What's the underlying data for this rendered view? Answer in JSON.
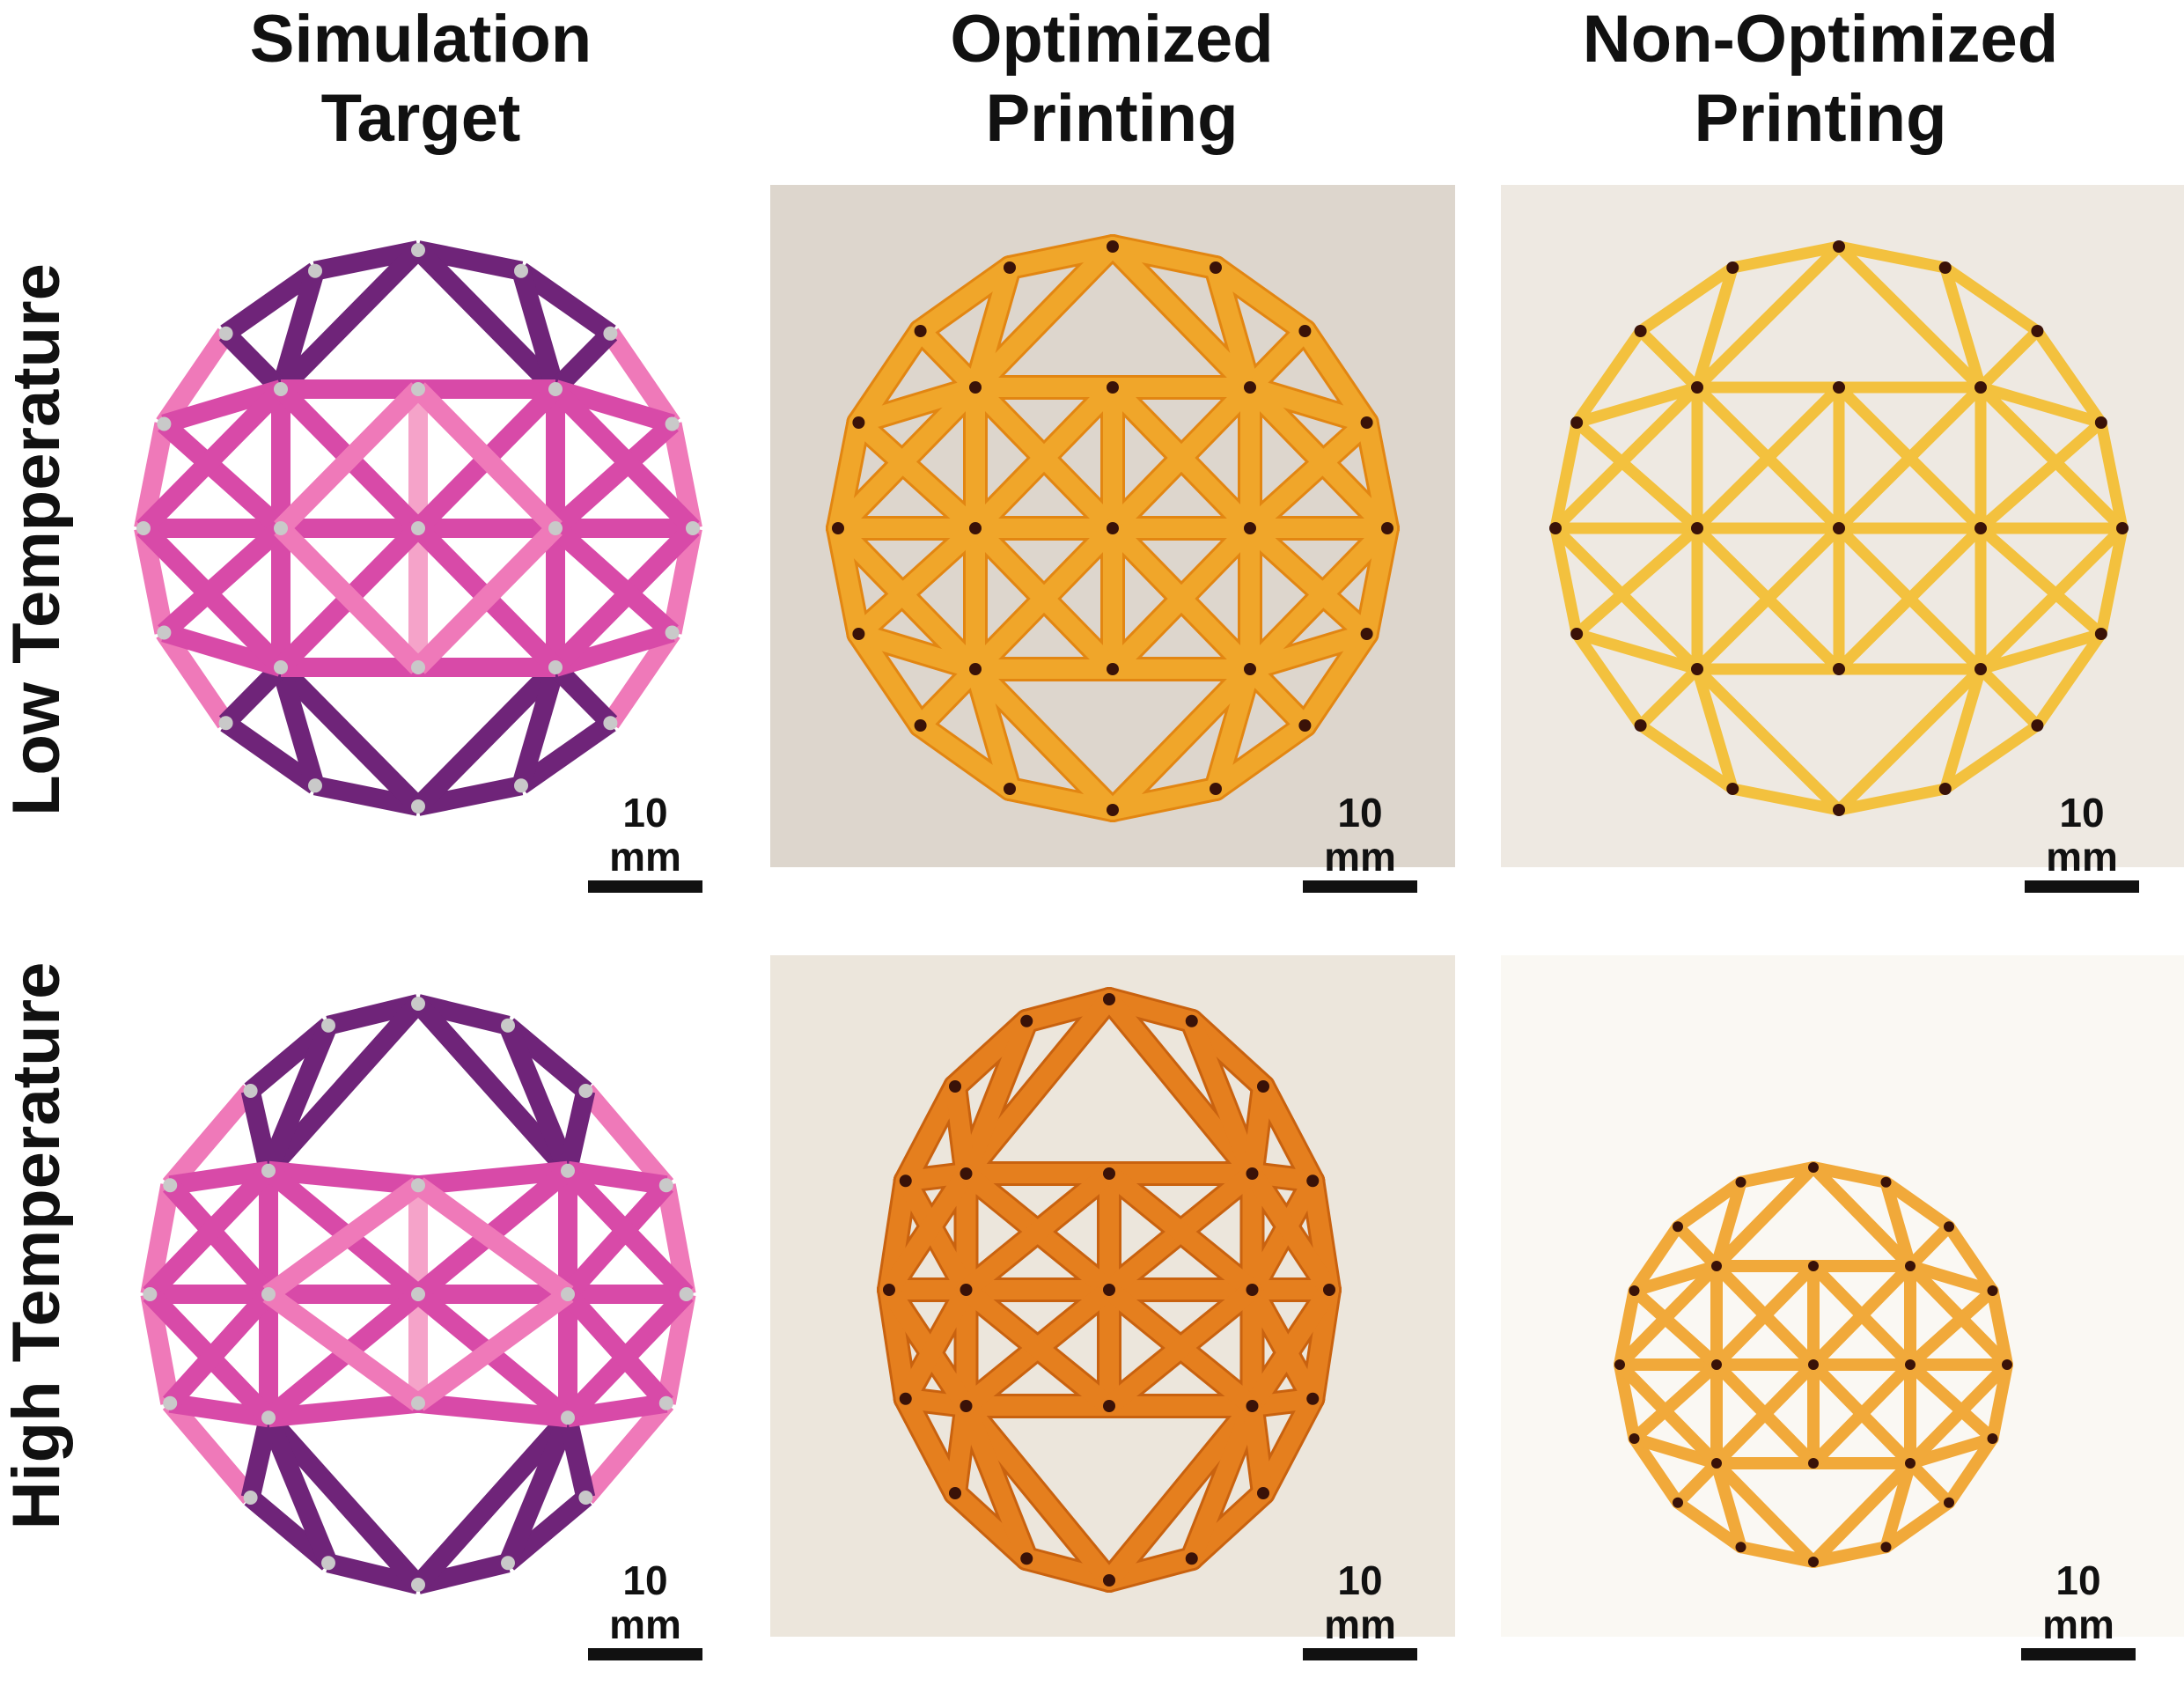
{
  "columns": [
    {
      "line1": "Simulation",
      "line2": "Target"
    },
    {
      "line1": "Optimized",
      "line2": "Printing"
    },
    {
      "line1": "Non-Optimized",
      "line2": "Printing"
    }
  ],
  "rows": [
    "Low Temperature",
    "High Temperature"
  ],
  "scale_bar_label": "10 mm",
  "colors": {
    "dark_purple": "#6f2479",
    "magenta": "#d84aa8",
    "pink": "#ef79b9",
    "light_pink": "#f5a3c9",
    "node_gray": "#c9c9c9",
    "print_amber": "#f0a62a",
    "print_amber_dark": "#e28612",
    "print_orange_hot": "#e57f1e",
    "print_yellow": "#f3c13e",
    "node_dark": "#3a1208",
    "bg_low_opt": "#ddd6cd",
    "bg_low_non": "#eee9e2",
    "bg_high_opt": "#ece6dc",
    "bg_high_non": "#faf8f3"
  }
}
